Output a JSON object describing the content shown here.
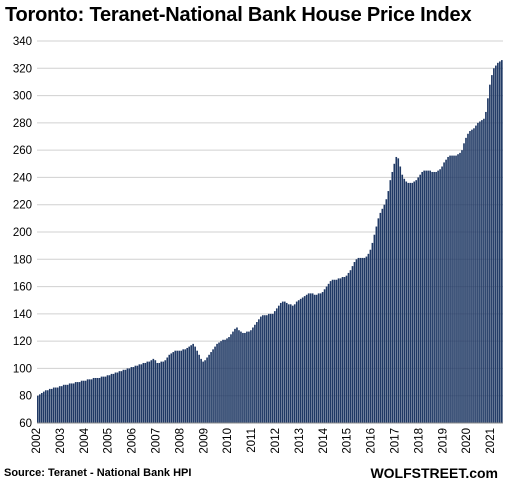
{
  "chart_data": {
    "type": "bar",
    "title": "Toronto:  Teranet-National  Bank House  Price Index",
    "xlabel": "",
    "ylabel": "",
    "ylim": [
      60,
      340
    ],
    "yticks": [
      60,
      80,
      100,
      120,
      140,
      160,
      180,
      200,
      220,
      240,
      260,
      280,
      300,
      320,
      340
    ],
    "xticks": [
      "2002",
      "2003",
      "2004",
      "2005",
      "2006",
      "2007",
      "2008",
      "2009",
      "2010",
      "2011",
      "2012",
      "2013",
      "2014",
      "2015",
      "2016",
      "2017",
      "2018",
      "2019",
      "2020",
      "2021"
    ],
    "grid": true,
    "bar_color": "#1f3864",
    "series": [
      {
        "frequency": "monthly",
        "start": "2002-01",
        "values": [
          80,
          81,
          82,
          83,
          84,
          84,
          85,
          85,
          86,
          86,
          86,
          87,
          87,
          88,
          88,
          88,
          89,
          89,
          89,
          90,
          90,
          90,
          91,
          91,
          91,
          92,
          92,
          92,
          93,
          93,
          93,
          93,
          94,
          94,
          94,
          95,
          95,
          96,
          96,
          97,
          97,
          98,
          98,
          99,
          99,
          100,
          100,
          101,
          101,
          102,
          102,
          103,
          103,
          104,
          104,
          105,
          105,
          106,
          107,
          106,
          104,
          104,
          105,
          105,
          106,
          108,
          110,
          111,
          112,
          113,
          113,
          113,
          113,
          114,
          114,
          115,
          116,
          117,
          118,
          116,
          113,
          110,
          107,
          105,
          106,
          108,
          110,
          112,
          114,
          116,
          118,
          119,
          120,
          121,
          121,
          122,
          123,
          125,
          127,
          129,
          130,
          128,
          127,
          126,
          126,
          127,
          127,
          128,
          130,
          132,
          134,
          136,
          138,
          139,
          139,
          139,
          140,
          140,
          140,
          142,
          144,
          146,
          148,
          149,
          149,
          148,
          147,
          147,
          146,
          147,
          149,
          150,
          151,
          152,
          153,
          154,
          155,
          155,
          155,
          154,
          154,
          155,
          155,
          156,
          158,
          160,
          162,
          164,
          165,
          165,
          165,
          166,
          166,
          167,
          167,
          168,
          170,
          172,
          175,
          178,
          180,
          181,
          181,
          181,
          181,
          182,
          184,
          187,
          192,
          198,
          204,
          210,
          214,
          217,
          220,
          224,
          230,
          238,
          244,
          250,
          255,
          254,
          248,
          242,
          239,
          237,
          236,
          236,
          236,
          237,
          238,
          240,
          242,
          244,
          245,
          245,
          245,
          245,
          244,
          244,
          244,
          245,
          246,
          248,
          251,
          253,
          255,
          256,
          256,
          256,
          256,
          257,
          258,
          260,
          265,
          269,
          272,
          274,
          275,
          276,
          278,
          280,
          281,
          282,
          283,
          288,
          298,
          308,
          315,
          320,
          322,
          324,
          325,
          326
        ]
      }
    ]
  },
  "source": "Source: Teranet - National Bank HPI",
  "brand": "WOLFSTREET.com"
}
